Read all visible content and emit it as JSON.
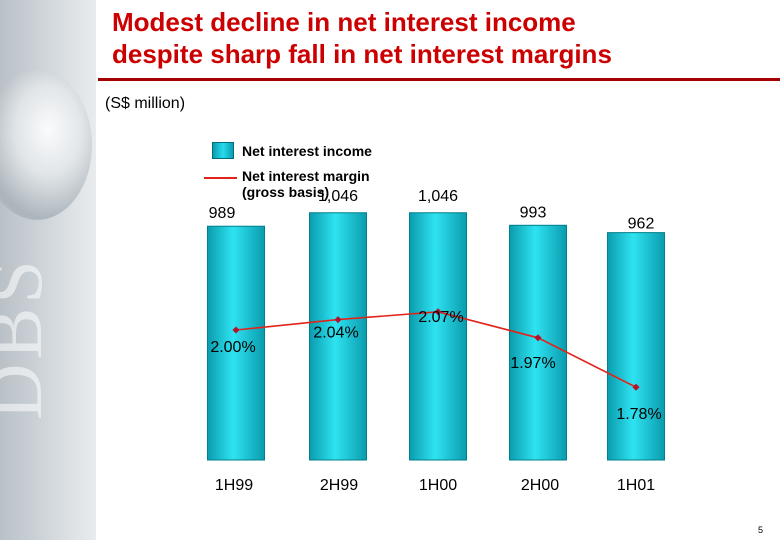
{
  "slide": {
    "title_line1": "Modest decline in net interest income",
    "title_line2": "despite sharp fall in net interest margins",
    "units": "(S$ million)",
    "page_number": "5"
  },
  "legend": {
    "income": "Net interest income",
    "margin_line1": "Net interest margin",
    "margin_line2": "(gross basis)"
  },
  "colors": {
    "bar": "#1fc7d8",
    "bar_edge": "#007f8c",
    "line": "#e2231a",
    "marker": "#b3122e",
    "title": "#cc0000"
  },
  "chart_data": {
    "type": "bar",
    "categories": [
      "1H99",
      "2H99",
      "1H00",
      "2H00",
      "1H01"
    ],
    "series": [
      {
        "name": "Net interest income",
        "type": "bar",
        "values": [
          989,
          1046,
          1046,
          993,
          962
        ],
        "labels": [
          "989",
          "1,046",
          "1,046",
          "993",
          "962"
        ]
      },
      {
        "name": "Net interest margin (gross basis)",
        "type": "line",
        "values": [
          2.0,
          2.04,
          2.07,
          1.97,
          1.78
        ],
        "labels": [
          "2.00%",
          "2.04%",
          "2.07%",
          "1.97%",
          "1.78%"
        ]
      }
    ],
    "y_primary_range": [
      0,
      1100
    ],
    "y_secondary_range": [
      1.5,
      2.5
    ],
    "grid": false,
    "legend": "top-left"
  }
}
